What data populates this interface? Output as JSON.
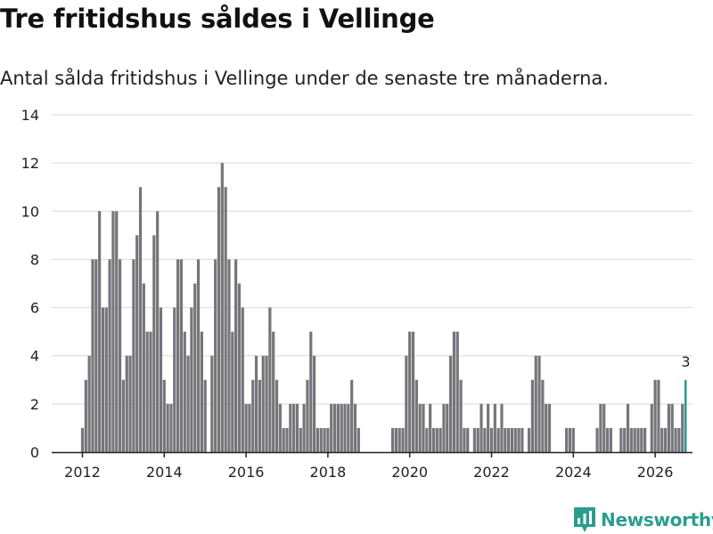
{
  "header": {
    "title": "Tre fritidshus såldes i Vellinge",
    "subtitle": "Antal sålda fritidshus i Vellinge under de senaste tre månaderna."
  },
  "logo": {
    "text": "Newsworthy",
    "icon": "newsworthy-chart-icon"
  },
  "colors": {
    "bar": "#76757a",
    "highlight": "#2a9d8f",
    "grid": "#d9d9d9",
    "axis": "#222222"
  },
  "chart_data": {
    "type": "bar",
    "title": "Tre fritidshus såldes i Vellinge",
    "subtitle": "Antal sålda fritidshus i Vellinge under de senaste tre månaderna.",
    "xlabel": "",
    "ylabel": "",
    "ylim": [
      0,
      14
    ],
    "yticks": [
      0,
      2,
      4,
      6,
      8,
      10,
      12,
      14
    ],
    "xticks": [
      "2012",
      "2014",
      "2016",
      "2018",
      "2020",
      "2022",
      "2024",
      "2026"
    ],
    "grid": true,
    "start": "2012-01",
    "frequency": "monthly",
    "highlight_label": "3",
    "values": [
      1,
      3,
      4,
      8,
      8,
      10,
      6,
      6,
      8,
      10,
      10,
      8,
      3,
      4,
      4,
      8,
      9,
      11,
      7,
      5,
      5,
      9,
      10,
      6,
      3,
      2,
      2,
      6,
      8,
      8,
      5,
      4,
      6,
      7,
      8,
      5,
      3,
      0,
      4,
      8,
      11,
      12,
      11,
      8,
      5,
      8,
      7,
      6,
      2,
      2,
      3,
      4,
      3,
      4,
      4,
      6,
      5,
      3,
      2,
      1,
      1,
      2,
      2,
      2,
      1,
      2,
      3,
      5,
      4,
      1,
      1,
      1,
      1,
      2,
      2,
      2,
      2,
      2,
      2,
      3,
      2,
      1,
      0,
      0,
      0,
      0,
      0,
      0,
      0,
      0,
      0,
      1,
      1,
      1,
      1,
      4,
      5,
      5,
      3,
      2,
      2,
      1,
      2,
      1,
      1,
      1,
      2,
      2,
      4,
      5,
      5,
      3,
      1,
      1,
      0,
      1,
      1,
      2,
      1,
      2,
      1,
      2,
      1,
      2,
      1,
      1,
      1,
      1,
      1,
      1,
      0,
      1,
      3,
      4,
      4,
      3,
      2,
      2,
      0,
      0,
      0,
      0,
      1,
      1,
      1,
      0,
      0,
      0,
      0,
      0,
      0,
      1,
      2,
      2,
      1,
      1,
      0,
      0,
      1,
      1,
      2,
      1,
      1,
      1,
      1,
      1,
      0,
      2,
      3,
      3,
      1,
      1,
      2,
      2,
      1,
      1,
      2,
      3
    ]
  }
}
